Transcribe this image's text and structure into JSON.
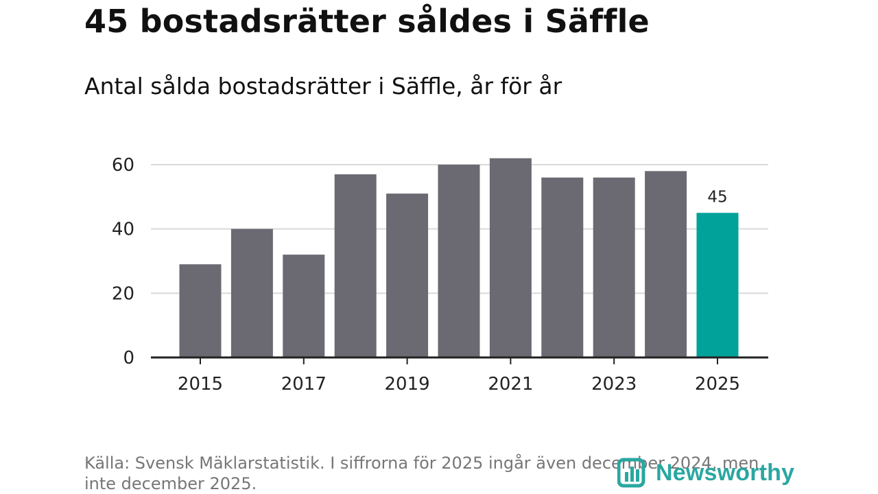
{
  "header": {
    "title": "45 bostadsrätter såldes i Säffle",
    "subtitle": "Antal sålda bostadsrätter i Säffle, år för år"
  },
  "footer": {
    "source": "Källa: Svensk Mäklarstatistik. I siffrorna för 2025 ingår även december 2024, men inte december 2025.",
    "logo_text": "Newsworthy"
  },
  "colors": {
    "bar": "#6b6a72",
    "highlight": "#00a29a",
    "grid": "#d9d9d9",
    "axis": "#222222",
    "logo": "#2aa7a1"
  },
  "chart_data": {
    "type": "bar",
    "title": "45 bostadsrätter såldes i Säffle",
    "subtitle": "Antal sålda bostadsrätter i Säffle, år för år",
    "categories": [
      "2015",
      "2016",
      "2017",
      "2018",
      "2019",
      "2020",
      "2021",
      "2022",
      "2023",
      "2024",
      "2025"
    ],
    "values": [
      29,
      40,
      32,
      57,
      51,
      60,
      62,
      56,
      56,
      58,
      45
    ],
    "highlight_index": 10,
    "data_labels": [
      {
        "index": 10,
        "text": "45"
      }
    ],
    "x_ticks": [
      "2015",
      "2017",
      "2019",
      "2021",
      "2023",
      "2025"
    ],
    "y_ticks": [
      0,
      20,
      40,
      60
    ],
    "ylim": [
      0,
      60
    ],
    "xlabel": "",
    "ylabel": "",
    "grid": true,
    "legend": "none"
  }
}
